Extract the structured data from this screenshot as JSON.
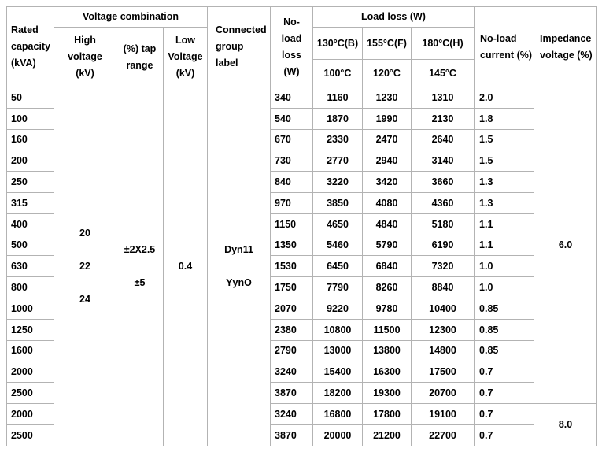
{
  "header": {
    "rated_capacity": "Rated\ncapacity\n(kVA)",
    "voltage_combination": "Voltage combination",
    "high_voltage": "High\nvoltage\n(kV)",
    "tap_range": "(%) tap\nrange",
    "low_voltage": "Low\nVoltage\n(kV)",
    "connected_group": "Connected\ngroup\nlabel",
    "no_load_loss": "No-\nload\nloss\n(W)",
    "load_loss": "Load loss (W)",
    "load_loss_cols_top": [
      "130°C(B)",
      "155°C(F)",
      "180°C(H)"
    ],
    "load_loss_cols_bottom": [
      "100°C",
      "120°C",
      "145°C"
    ],
    "no_load_current": "No-load\ncurrent (%)",
    "impedance_voltage": "Impedance\nvoltage (%)"
  },
  "merged": {
    "high_voltage_values": [
      "20",
      "22",
      "24"
    ],
    "tap_range_values": [
      "±2X2.5",
      "±5"
    ],
    "low_voltage_value": "0.4",
    "connected_group_values": [
      "Dyn11",
      "YynO"
    ],
    "impedance_group1": "6.0",
    "impedance_group2": "8.0"
  },
  "rows": [
    {
      "capacity": "50",
      "no_load_loss": "340",
      "load_b": "1160",
      "load_f": "1230",
      "load_h": "1310",
      "current": "2.0"
    },
    {
      "capacity": "100",
      "no_load_loss": "540",
      "load_b": "1870",
      "load_f": "1990",
      "load_h": "2130",
      "current": "1.8"
    },
    {
      "capacity": "160",
      "no_load_loss": "670",
      "load_b": "2330",
      "load_f": "2470",
      "load_h": "2640",
      "current": "1.5"
    },
    {
      "capacity": "200",
      "no_load_loss": "730",
      "load_b": "2770",
      "load_f": "2940",
      "load_h": "3140",
      "current": "1.5"
    },
    {
      "capacity": "250",
      "no_load_loss": "840",
      "load_b": "3220",
      "load_f": "3420",
      "load_h": "3660",
      "current": "1.3"
    },
    {
      "capacity": "315",
      "no_load_loss": "970",
      "load_b": "3850",
      "load_f": "4080",
      "load_h": "4360",
      "current": "1.3"
    },
    {
      "capacity": "400",
      "no_load_loss": "1150",
      "load_b": "4650",
      "load_f": "4840",
      "load_h": "5180",
      "current": "1.1"
    },
    {
      "capacity": "500",
      "no_load_loss": "1350",
      "load_b": "5460",
      "load_f": "5790",
      "load_h": "6190",
      "current": "1.1"
    },
    {
      "capacity": "630",
      "no_load_loss": "1530",
      "load_b": "6450",
      "load_f": "6840",
      "load_h": "7320",
      "current": "1.0"
    },
    {
      "capacity": "800",
      "no_load_loss": "1750",
      "load_b": "7790",
      "load_f": "8260",
      "load_h": "8840",
      "current": "1.0"
    },
    {
      "capacity": "1000",
      "no_load_loss": "2070",
      "load_b": "9220",
      "load_f": "9780",
      "load_h": "10400",
      "current": "0.85"
    },
    {
      "capacity": "1250",
      "no_load_loss": "2380",
      "load_b": "10800",
      "load_f": "11500",
      "load_h": "12300",
      "current": "0.85"
    },
    {
      "capacity": "1600",
      "no_load_loss": "2790",
      "load_b": "13000",
      "load_f": "13800",
      "load_h": "14800",
      "current": "0.85"
    },
    {
      "capacity": "2000",
      "no_load_loss": "3240",
      "load_b": "15400",
      "load_f": "16300",
      "load_h": "17500",
      "current": "0.7"
    },
    {
      "capacity": "2500",
      "no_load_loss": "3870",
      "load_b": "18200",
      "load_f": "19300",
      "load_h": "20700",
      "current": "0.7"
    },
    {
      "capacity": "2000",
      "no_load_loss": "3240",
      "load_b": "16800",
      "load_f": "17800",
      "load_h": "19100",
      "current": "0.7"
    },
    {
      "capacity": "2500",
      "no_load_loss": "3870",
      "load_b": "20000",
      "load_f": "21200",
      "load_h": "22700",
      "current": "0.7"
    }
  ],
  "layout_meta": {
    "impedance_group1_rowspan_note": "6.0 spans rows 1-15, 8.0 spans rows 16-17"
  }
}
